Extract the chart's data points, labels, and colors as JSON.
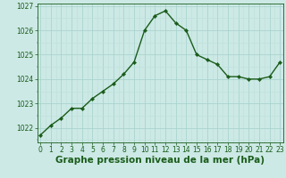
{
  "x": [
    0,
    1,
    2,
    3,
    4,
    5,
    6,
    7,
    8,
    9,
    10,
    11,
    12,
    13,
    14,
    15,
    16,
    17,
    18,
    19,
    20,
    21,
    22,
    23
  ],
  "y": [
    1021.7,
    1022.1,
    1022.4,
    1022.8,
    1022.8,
    1023.2,
    1023.5,
    1023.8,
    1024.2,
    1024.7,
    1026.0,
    1026.6,
    1026.8,
    1026.3,
    1026.0,
    1025.0,
    1024.8,
    1024.6,
    1024.1,
    1024.1,
    1024.0,
    1024.0,
    1024.1,
    1024.7
  ],
  "line_color": "#1a5c1a",
  "marker": "D",
  "marker_size": 2.2,
  "bg_color": "#cce9e5",
  "grid_major_color": "#aad4cf",
  "grid_minor_color": "#bde0db",
  "xlabel": "Graphe pression niveau de la mer (hPa)",
  "xlabel_color": "#1a5c1a",
  "xlabel_fontsize": 7.5,
  "xlabel_bold": true,
  "ylim": [
    1021.4,
    1027.1
  ],
  "yticks": [
    1022,
    1023,
    1024,
    1025,
    1026,
    1027
  ],
  "xticks": [
    0,
    1,
    2,
    3,
    4,
    5,
    6,
    7,
    8,
    9,
    10,
    11,
    12,
    13,
    14,
    15,
    16,
    17,
    18,
    19,
    20,
    21,
    22,
    23
  ],
  "tick_color": "#1a5c1a",
  "tick_fontsize": 5.5,
  "line_width": 1.0,
  "xlim": [
    -0.3,
    23.3
  ]
}
